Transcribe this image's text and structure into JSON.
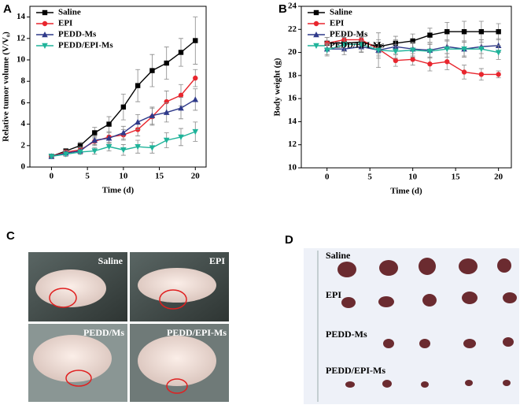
{
  "chart_data": [
    {
      "type": "line",
      "panel": "A",
      "x_label": "Time (d)",
      "y_label": "Relative tumor volume (V/V₀)",
      "x": [
        0,
        2,
        4,
        6,
        8,
        10,
        12,
        14,
        16,
        18,
        20
      ],
      "xlim": [
        -3,
        21.5
      ],
      "xticks": [
        0,
        5,
        10,
        15,
        20
      ],
      "ylim": [
        0,
        15
      ],
      "yticks": [
        0,
        2,
        4,
        6,
        8,
        10,
        12,
        14
      ],
      "legend": "upper left",
      "series": [
        {
          "name": "Saline",
          "color": "#000000",
          "marker": "square",
          "values": [
            1,
            1.5,
            2,
            3.2,
            4,
            5.6,
            7.6,
            9,
            9.7,
            10.7,
            11.8
          ],
          "errors": [
            0.1,
            0.2,
            0.3,
            0.5,
            0.7,
            1.2,
            1.5,
            1.5,
            1.5,
            1.3,
            2.2
          ]
        },
        {
          "name": "EPI",
          "color": "#e8262e",
          "marker": "circle",
          "values": [
            1,
            1.4,
            1.6,
            2.4,
            2.8,
            3,
            3.5,
            4.7,
            6.1,
            6.7,
            8.3
          ],
          "errors": [
            0.1,
            0.2,
            0.3,
            0.4,
            0.5,
            0.5,
            0.6,
            0.8,
            1,
            1,
            0.8
          ]
        },
        {
          "name": "PEDD-Ms",
          "color": "#2f3a8a",
          "marker": "triangle",
          "values": [
            1,
            1.3,
            1.5,
            2.5,
            2.7,
            3.2,
            4.2,
            4.8,
            5.1,
            5.5,
            6.3
          ],
          "errors": [
            0.1,
            0.2,
            0.3,
            0.4,
            0.5,
            0.6,
            0.7,
            0.8,
            0.9,
            1,
            1
          ]
        },
        {
          "name": "PEDD/EPI-Ms",
          "color": "#1fb39a",
          "marker": "triangle-down",
          "values": [
            1,
            1.2,
            1.4,
            1.5,
            1.9,
            1.6,
            1.9,
            1.8,
            2.5,
            2.8,
            3.3
          ],
          "errors": [
            0.1,
            0.2,
            0.2,
            0.3,
            0.4,
            0.5,
            0.6,
            0.5,
            0.7,
            0.8,
            0.9
          ]
        }
      ]
    },
    {
      "type": "line",
      "panel": "B",
      "x_label": "Time (d)",
      "y_label": "Body weight (g)",
      "x": [
        0,
        2,
        4,
        6,
        8,
        10,
        12,
        14,
        16,
        18,
        20
      ],
      "xlim": [
        -3,
        21.5
      ],
      "xticks": [
        0,
        5,
        10,
        15,
        20
      ],
      "ylim": [
        10,
        24
      ],
      "yticks": [
        10,
        12,
        14,
        16,
        18,
        20,
        22,
        24
      ],
      "legend": "upper left",
      "series": [
        {
          "name": "Saline",
          "color": "#000000",
          "marker": "square",
          "values": [
            20.8,
            20.8,
            20.9,
            20.5,
            20.8,
            21,
            21.5,
            21.8,
            21.8,
            21.8,
            21.8
          ],
          "errors": [
            0.5,
            0.5,
            0.5,
            0.6,
            0.6,
            0.6,
            0.6,
            0.8,
            0.9,
            0.9,
            0.7
          ]
        },
        {
          "name": "EPI",
          "color": "#e8262e",
          "marker": "circle",
          "values": [
            20.8,
            21.1,
            21.1,
            20.3,
            19.3,
            19.4,
            19,
            19.2,
            18.3,
            18.1,
            18.1
          ],
          "errors": [
            0.5,
            0.5,
            0.5,
            0.6,
            0.5,
            0.5,
            0.6,
            0.7,
            0.6,
            0.5,
            0.3
          ]
        },
        {
          "name": "PEDD-Ms",
          "color": "#2f3a8a",
          "marker": "triangle",
          "values": [
            20.3,
            20.3,
            20.5,
            20.2,
            20.5,
            20.3,
            20.2,
            20.5,
            20.3,
            20.5,
            20.6
          ],
          "errors": [
            0.5,
            0.5,
            0.5,
            0.7,
            0.6,
            0.6,
            0.6,
            0.6,
            0.6,
            0.6,
            0.6
          ]
        },
        {
          "name": "PEDD/EPI-Ms",
          "color": "#1fb39a",
          "marker": "triangle-down",
          "values": [
            20.2,
            20.7,
            20.7,
            20.2,
            20.1,
            20.2,
            20.1,
            20.3,
            20.3,
            20.3,
            20
          ],
          "errors": [
            0.5,
            0.6,
            0.6,
            1.5,
            0.6,
            0.6,
            0.6,
            0.7,
            0.7,
            0.8,
            0.6
          ]
        }
      ]
    }
  ],
  "photo_c": {
    "panel": "C",
    "captions": [
      "Saline",
      "EPI",
      "PEDD/Ms",
      "PEDD/EPI-Ms"
    ]
  },
  "photo_d": {
    "panel": "D",
    "captions": [
      "Saline",
      "EPI",
      "PEDD-Ms",
      "PEDD/EPI-Ms"
    ]
  }
}
